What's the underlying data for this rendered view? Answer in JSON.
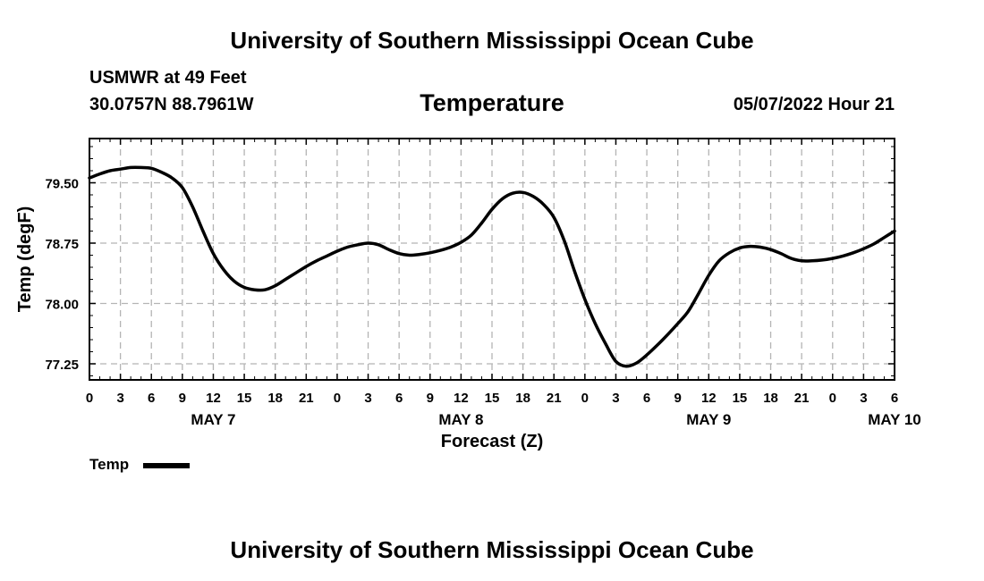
{
  "header": {
    "title": "University of Southern Mississippi Ocean Cube",
    "station": "USMWR at 49 Feet",
    "coordinates": "30.0757N  88.7961W",
    "variable_title": "Temperature",
    "datetime": "05/07/2022 Hour 21"
  },
  "footer": {
    "title": "University of Southern Mississippi Ocean Cube"
  },
  "legend": {
    "label": "Temp",
    "color": "#000000"
  },
  "chart_data": {
    "type": "line",
    "title": "Temperature",
    "xlabel": "Forecast (Z)",
    "ylabel": "Temp (degF)",
    "xlim": [
      0,
      78
    ],
    "ylim": [
      77.05,
      80.05
    ],
    "x_ticks": [
      0,
      3,
      6,
      9,
      12,
      15,
      18,
      21,
      24,
      27,
      30,
      33,
      36,
      39,
      42,
      45,
      48,
      51,
      54,
      57,
      60,
      63,
      66,
      69,
      72,
      75,
      78
    ],
    "x_tick_labels": [
      "0",
      "3",
      "6",
      "9",
      "12",
      "15",
      "18",
      "21",
      "0",
      "3",
      "6",
      "9",
      "12",
      "15",
      "18",
      "21",
      "0",
      "3",
      "6",
      "9",
      "12",
      "15",
      "18",
      "21",
      "0",
      "3",
      "6"
    ],
    "y_ticks": [
      77.25,
      78.0,
      78.75,
      79.5
    ],
    "y_tick_labels": [
      "77.25",
      "78.00",
      "78.75",
      "79.50"
    ],
    "day_labels": [
      {
        "x": 12,
        "label": "MAY 7"
      },
      {
        "x": 36,
        "label": "MAY 8"
      },
      {
        "x": 60,
        "label": "MAY 9"
      },
      {
        "x": 78,
        "label": "MAY 10"
      }
    ],
    "grid": true,
    "series": [
      {
        "name": "Temp",
        "color": "#000000",
        "x": [
          0,
          1,
          2,
          3,
          4,
          5,
          6,
          7,
          8,
          9,
          10,
          11,
          12,
          13,
          14,
          15,
          16,
          17,
          18,
          19,
          20,
          21,
          22,
          23,
          24,
          25,
          26,
          27,
          28,
          29,
          30,
          31,
          32,
          33,
          34,
          35,
          36,
          37,
          38,
          39,
          40,
          41,
          42,
          43,
          44,
          45,
          46,
          47,
          48,
          49,
          50,
          51,
          52,
          53,
          54,
          55,
          56,
          57,
          58,
          59,
          60,
          61,
          62,
          63,
          64,
          65,
          66,
          67,
          68,
          69,
          70,
          71,
          72,
          73,
          74,
          75,
          76,
          77,
          78
        ],
        "values": [
          79.56,
          79.61,
          79.65,
          79.67,
          79.69,
          79.69,
          79.68,
          79.63,
          79.56,
          79.44,
          79.2,
          78.9,
          78.62,
          78.42,
          78.28,
          78.2,
          78.17,
          78.17,
          78.22,
          78.3,
          78.38,
          78.46,
          78.53,
          78.59,
          78.65,
          78.7,
          78.73,
          78.75,
          78.73,
          78.67,
          78.62,
          78.6,
          78.61,
          78.63,
          78.66,
          78.7,
          78.76,
          78.85,
          79.0,
          79.17,
          79.3,
          79.37,
          79.38,
          79.33,
          79.23,
          79.07,
          78.78,
          78.4,
          78.05,
          77.75,
          77.5,
          77.28,
          77.22,
          77.26,
          77.36,
          77.48,
          77.61,
          77.75,
          77.9,
          78.12,
          78.35,
          78.53,
          78.63,
          78.69,
          78.71,
          78.7,
          78.67,
          78.62,
          78.56,
          78.53,
          78.53,
          78.54,
          78.56,
          78.59,
          78.63,
          78.68,
          78.74,
          78.82,
          78.9
        ]
      }
    ]
  }
}
